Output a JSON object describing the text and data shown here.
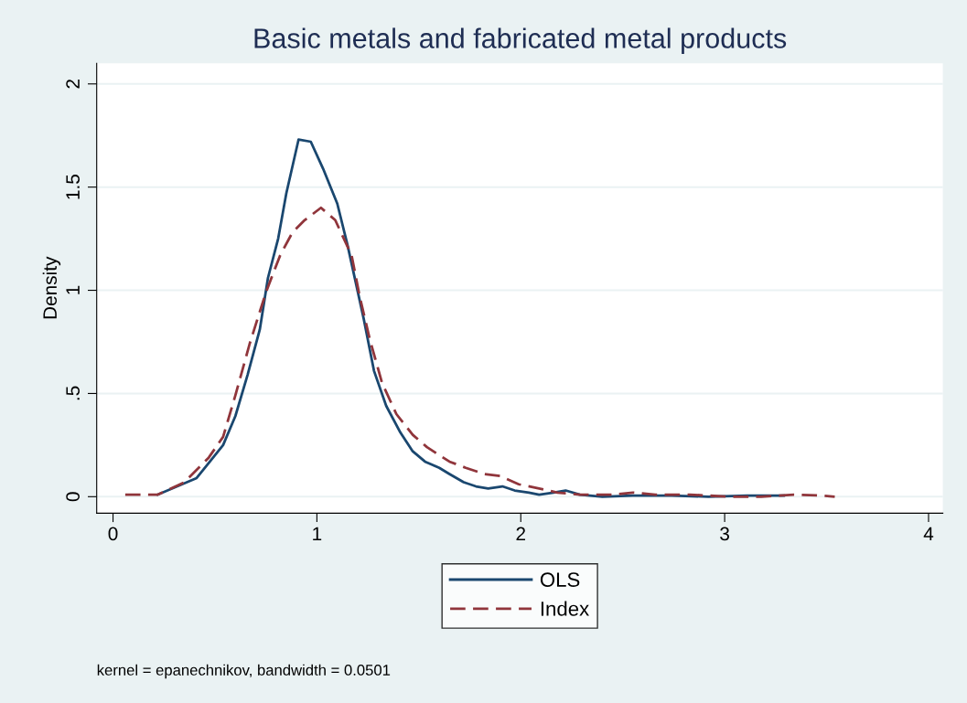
{
  "chart_data": {
    "type": "line",
    "title": "Basic metals and fabricated metal products",
    "ylabel": "Density",
    "xlim": [
      -0.08,
      4.07
    ],
    "ylim": [
      -0.08,
      2.1
    ],
    "xticks": [
      0,
      1,
      2,
      3,
      4
    ],
    "yticks": [
      0,
      {
        "value": 0.5,
        "label": ".5"
      },
      1,
      1.5,
      2
    ],
    "grid": "y",
    "legend": "bottom",
    "marker": "none",
    "series": [
      {
        "name": "OLS",
        "color": "#1a476f",
        "line_style": "solid",
        "x": [
          0.22,
          0.41,
          0.54,
          0.6,
          0.66,
          0.72,
          0.76,
          0.81,
          0.85,
          0.91,
          0.97,
          1.03,
          1.1,
          1.15,
          1.23,
          1.28,
          1.34,
          1.41,
          1.47,
          1.53,
          1.6,
          1.65,
          1.72,
          1.78,
          1.84,
          1.91,
          1.97,
          2.04,
          2.09,
          2.16,
          2.22,
          2.29,
          2.4,
          2.55,
          2.74,
          2.92,
          3.11,
          3.29
        ],
        "values": [
          0.01,
          0.09,
          0.25,
          0.39,
          0.59,
          0.81,
          1.06,
          1.25,
          1.47,
          1.73,
          1.72,
          1.59,
          1.42,
          1.22,
          0.86,
          0.61,
          0.44,
          0.31,
          0.22,
          0.17,
          0.14,
          0.11,
          0.07,
          0.05,
          0.04,
          0.05,
          0.03,
          0.02,
          0.01,
          0.02,
          0.03,
          0.01,
          0.0,
          0.005,
          0.005,
          0.0,
          0.005,
          0.005
        ]
      },
      {
        "name": "Index",
        "color": "#90353b",
        "line_style": "dashed",
        "x": [
          0.06,
          0.22,
          0.35,
          0.47,
          0.54,
          0.6,
          0.67,
          0.75,
          0.82,
          0.88,
          0.94,
          1.02,
          1.09,
          1.17,
          1.21,
          1.26,
          1.32,
          1.39,
          1.47,
          1.54,
          1.65,
          1.73,
          1.82,
          1.9,
          1.99,
          2.09,
          2.18,
          2.29,
          2.46,
          2.55,
          2.66,
          2.83,
          3.02,
          3.18,
          3.34,
          3.48,
          3.54
        ],
        "values": [
          0.01,
          0.01,
          0.07,
          0.19,
          0.29,
          0.49,
          0.74,
          0.99,
          1.17,
          1.28,
          1.34,
          1.4,
          1.34,
          1.17,
          0.97,
          0.76,
          0.55,
          0.4,
          0.3,
          0.24,
          0.17,
          0.14,
          0.11,
          0.1,
          0.06,
          0.04,
          0.02,
          0.01,
          0.01,
          0.02,
          0.01,
          0.01,
          0.0,
          0.0,
          0.01,
          0.005,
          0.0
        ]
      }
    ],
    "annotations": [
      "kernel = epanechnikov, bandwidth = 0.0501"
    ]
  }
}
